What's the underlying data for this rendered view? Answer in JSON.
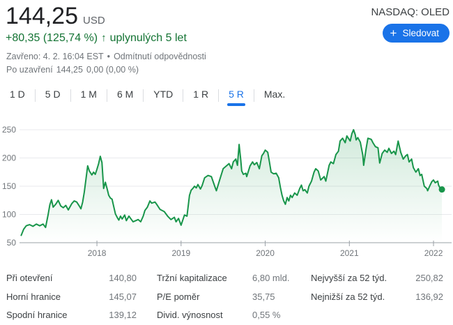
{
  "header": {
    "price": "144,25",
    "currency": "USD",
    "change": "+80,35 (125,74 %)",
    "change_arrow": "↑",
    "change_period": "uplynulých 5 let",
    "closed_info": "Zavřeno: 4. 2. 16:04 EST",
    "separator": "•",
    "disclaimer": "Odmítnutí odpovědnosti",
    "after_hours_label": "Po uzavření",
    "after_hours_price": "144,25",
    "after_hours_change": "0,00 (0,00 %)",
    "ticker": "NASDAQ: OLED",
    "follow_label": "Sledovat",
    "plus_glyph": "+"
  },
  "tabs": {
    "active": "5 R",
    "items": [
      {
        "label": "1 D"
      },
      {
        "label": "5 D"
      },
      {
        "label": "1 M"
      },
      {
        "label": "6 M"
      },
      {
        "label": "YTD"
      },
      {
        "label": "1 R"
      },
      {
        "label": "5 R"
      },
      {
        "label": "Max."
      }
    ]
  },
  "chart_data": {
    "type": "line",
    "title": "OLED share price, past 5 years (USD)",
    "xlabel": "",
    "ylabel": "",
    "xlim": [
      2017.08,
      2022.215
    ],
    "ylim": [
      50,
      250
    ],
    "y_ticks": [
      50,
      100,
      150,
      200,
      250
    ],
    "x_ticks": [
      2018,
      2019,
      2020,
      2021,
      2022
    ],
    "grid": true,
    "legend": "none",
    "colors": {
      "line": "#18954a",
      "fill_top": "rgba(24,149,74,0.20)",
      "fill_bottom": "rgba(24,149,74,0)",
      "grid": "#e8eaed",
      "axis": "#9aa0a6",
      "tick_text": "#70757a"
    },
    "series": [
      {
        "name": "OLED",
        "points": [
          [
            2017.1,
            63
          ],
          [
            2017.13,
            74
          ],
          [
            2017.16,
            80
          ],
          [
            2017.2,
            82
          ],
          [
            2017.24,
            79
          ],
          [
            2017.28,
            83
          ],
          [
            2017.32,
            80
          ],
          [
            2017.36,
            83
          ],
          [
            2017.39,
            77
          ],
          [
            2017.42,
            100
          ],
          [
            2017.44,
            117
          ],
          [
            2017.46,
            126
          ],
          [
            2017.48,
            113
          ],
          [
            2017.51,
            118
          ],
          [
            2017.54,
            125
          ],
          [
            2017.57,
            115
          ],
          [
            2017.6,
            112
          ],
          [
            2017.63,
            116
          ],
          [
            2017.66,
            108
          ],
          [
            2017.7,
            119
          ],
          [
            2017.73,
            124
          ],
          [
            2017.76,
            122
          ],
          [
            2017.79,
            115
          ],
          [
            2017.81,
            110
          ],
          [
            2017.83,
            122
          ],
          [
            2017.85,
            140
          ],
          [
            2017.87,
            163
          ],
          [
            2017.89,
            186
          ],
          [
            2017.91,
            177
          ],
          [
            2017.94,
            170
          ],
          [
            2017.96,
            175
          ],
          [
            2017.98,
            171
          ],
          [
            2018.0,
            180
          ],
          [
            2018.02,
            190
          ],
          [
            2018.04,
            203
          ],
          [
            2018.06,
            192
          ],
          [
            2018.08,
            146
          ],
          [
            2018.1,
            157
          ],
          [
            2018.12,
            146
          ],
          [
            2018.14,
            134
          ],
          [
            2018.16,
            129
          ],
          [
            2018.18,
            127
          ],
          [
            2018.2,
            114
          ],
          [
            2018.22,
            101
          ],
          [
            2018.24,
            95
          ],
          [
            2018.26,
            90
          ],
          [
            2018.28,
            97
          ],
          [
            2018.3,
            92
          ],
          [
            2018.33,
            99
          ],
          [
            2018.35,
            89
          ],
          [
            2018.38,
            97
          ],
          [
            2018.41,
            91
          ],
          [
            2018.43,
            87
          ],
          [
            2018.46,
            89
          ],
          [
            2018.49,
            91
          ],
          [
            2018.52,
            87
          ],
          [
            2018.55,
            97
          ],
          [
            2018.57,
            107
          ],
          [
            2018.6,
            113
          ],
          [
            2018.63,
            124
          ],
          [
            2018.65,
            120
          ],
          [
            2018.69,
            122
          ],
          [
            2018.71,
            118
          ],
          [
            2018.75,
            109
          ],
          [
            2018.8,
            105
          ],
          [
            2018.84,
            97
          ],
          [
            2018.88,
            91
          ],
          [
            2018.92,
            95
          ],
          [
            2018.94,
            87
          ],
          [
            2018.97,
            93
          ],
          [
            2019.0,
            81
          ],
          [
            2019.04,
            99
          ],
          [
            2019.07,
            97
          ],
          [
            2019.1,
            134
          ],
          [
            2019.12,
            143
          ],
          [
            2019.14,
            146
          ],
          [
            2019.16,
            150
          ],
          [
            2019.18,
            147
          ],
          [
            2019.2,
            153
          ],
          [
            2019.23,
            145
          ],
          [
            2019.25,
            151
          ],
          [
            2019.28,
            165
          ],
          [
            2019.32,
            169
          ],
          [
            2019.36,
            167
          ],
          [
            2019.4,
            150
          ],
          [
            2019.42,
            142
          ],
          [
            2019.46,
            162
          ],
          [
            2019.5,
            181
          ],
          [
            2019.54,
            186
          ],
          [
            2019.57,
            190
          ],
          [
            2019.6,
            181
          ],
          [
            2019.62,
            193
          ],
          [
            2019.65,
            198
          ],
          [
            2019.67,
            187
          ],
          [
            2019.69,
            224
          ],
          [
            2019.71,
            196
          ],
          [
            2019.72,
            177
          ],
          [
            2019.74,
            171
          ],
          [
            2019.77,
            173
          ],
          [
            2019.78,
            167
          ],
          [
            2019.82,
            186
          ],
          [
            2019.85,
            193
          ],
          [
            2019.87,
            188
          ],
          [
            2019.9,
            192
          ],
          [
            2019.93,
            181
          ],
          [
            2019.96,
            204
          ],
          [
            2019.98,
            208
          ],
          [
            2020.0,
            214
          ],
          [
            2020.03,
            210
          ],
          [
            2020.05,
            193
          ],
          [
            2020.07,
            175
          ],
          [
            2020.1,
            172
          ],
          [
            2020.13,
            173
          ],
          [
            2020.16,
            165
          ],
          [
            2020.18,
            148
          ],
          [
            2020.2,
            134
          ],
          [
            2020.22,
            124
          ],
          [
            2020.24,
            118
          ],
          [
            2020.26,
            130
          ],
          [
            2020.28,
            124
          ],
          [
            2020.3,
            134
          ],
          [
            2020.32,
            130
          ],
          [
            2020.35,
            138
          ],
          [
            2020.38,
            134
          ],
          [
            2020.41,
            146
          ],
          [
            2020.43,
            152
          ],
          [
            2020.45,
            142
          ],
          [
            2020.47,
            144
          ],
          [
            2020.5,
            138
          ],
          [
            2020.52,
            150
          ],
          [
            2020.55,
            159
          ],
          [
            2020.58,
            175
          ],
          [
            2020.6,
            181
          ],
          [
            2020.63,
            177
          ],
          [
            2020.66,
            161
          ],
          [
            2020.7,
            167
          ],
          [
            2020.72,
            159
          ],
          [
            2020.76,
            187
          ],
          [
            2020.78,
            193
          ],
          [
            2020.81,
            190
          ],
          [
            2020.84,
            206
          ],
          [
            2020.87,
            212
          ],
          [
            2020.89,
            230
          ],
          [
            2020.92,
            235
          ],
          [
            2020.95,
            227
          ],
          [
            2020.97,
            239
          ],
          [
            2021.01,
            230
          ],
          [
            2021.03,
            243
          ],
          [
            2021.05,
            250
          ],
          [
            2021.07,
            241
          ],
          [
            2021.08,
            232
          ],
          [
            2021.1,
            236
          ],
          [
            2021.13,
            228
          ],
          [
            2021.16,
            205
          ],
          [
            2021.17,
            187
          ],
          [
            2021.2,
            217
          ],
          [
            2021.22,
            235
          ],
          [
            2021.26,
            233
          ],
          [
            2021.28,
            227
          ],
          [
            2021.31,
            220
          ],
          [
            2021.34,
            218
          ],
          [
            2021.36,
            191
          ],
          [
            2021.39,
            208
          ],
          [
            2021.42,
            214
          ],
          [
            2021.45,
            210
          ],
          [
            2021.47,
            217
          ],
          [
            2021.5,
            208
          ],
          [
            2021.53,
            212
          ],
          [
            2021.55,
            206
          ],
          [
            2021.58,
            230
          ],
          [
            2021.61,
            210
          ],
          [
            2021.64,
            198
          ],
          [
            2021.67,
            204
          ],
          [
            2021.69,
            206
          ],
          [
            2021.71,
            193
          ],
          [
            2021.74,
            198
          ],
          [
            2021.76,
            183
          ],
          [
            2021.79,
            175
          ],
          [
            2021.82,
            181
          ],
          [
            2021.84,
            169
          ],
          [
            2021.86,
            171
          ],
          [
            2021.89,
            150
          ],
          [
            2021.92,
            146
          ],
          [
            2021.93,
            142
          ],
          [
            2021.96,
            152
          ],
          [
            2021.98,
            158
          ],
          [
            2022.0,
            161
          ],
          [
            2022.02,
            156
          ],
          [
            2022.05,
            159
          ],
          [
            2022.06,
            152
          ],
          [
            2022.08,
            146
          ],
          [
            2022.1,
            144.25
          ]
        ]
      }
    ]
  },
  "stats": {
    "columns": [
      {
        "rows": [
          {
            "label": "Při otevření",
            "value": "140,80"
          },
          {
            "label": "Horní hranice",
            "value": "145,07"
          },
          {
            "label": "Spodní hranice",
            "value": "139,12"
          }
        ]
      },
      {
        "rows": [
          {
            "label": "Tržní kapitalizace",
            "value": "6,80 mld."
          },
          {
            "label": "P/E poměr",
            "value": "35,75"
          },
          {
            "label": "Divid. výnosnost",
            "value": "0,55 %"
          }
        ]
      },
      {
        "rows": [
          {
            "label": "Nejvyšší za 52 týd.",
            "value": "250,82"
          },
          {
            "label": "Nejnižší za 52 týd.",
            "value": "136,92"
          }
        ]
      }
    ]
  },
  "colors": {
    "accent_blue": "#1a73e8",
    "positive_green": "#137333",
    "chart_green": "#18954a",
    "text_primary": "#202124",
    "text_secondary": "#70757a"
  }
}
